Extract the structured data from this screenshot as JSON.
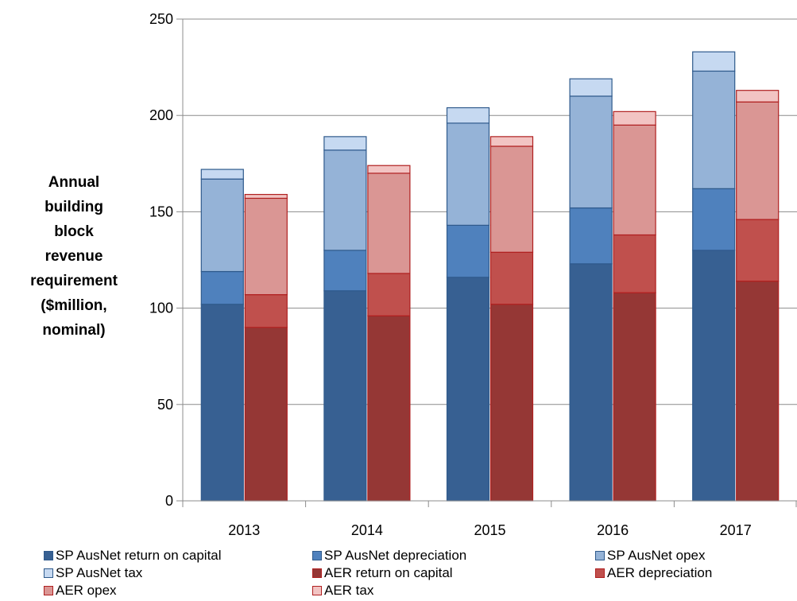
{
  "chart_data": {
    "type": "bar",
    "stacked": true,
    "grouped": true,
    "title": "",
    "ylabel_lines": [
      "Annual",
      "building",
      "block",
      "revenue",
      "requirement",
      "($million,",
      "nominal)"
    ],
    "xlabel": "",
    "categories": [
      "2013",
      "2014",
      "2015",
      "2016",
      "2017"
    ],
    "ylim": [
      0,
      250
    ],
    "yticks": [
      "0",
      "50",
      "100",
      "150",
      "200",
      "250"
    ],
    "grid": "horizontal",
    "legend_position": "bottom",
    "groups": [
      {
        "stack": "SP AusNet",
        "series": [
          {
            "name": "SP AusNet return on capital",
            "values": [
              102,
              109,
              116,
              123,
              130
            ],
            "color": "#376092"
          },
          {
            "name": "SP AusNet depreciation",
            "values": [
              17,
              21,
              27,
              29,
              32
            ],
            "color": "#4f81bd"
          },
          {
            "name": "SP AusNet opex",
            "values": [
              48,
              52,
              53,
              58,
              61
            ],
            "color": "#95b3d7"
          },
          {
            "name": "SP AusNet tax",
            "values": [
              5,
              7,
              8,
              9,
              10
            ],
            "color": "#c6d9f1"
          }
        ]
      },
      {
        "stack": "AER",
        "series": [
          {
            "name": "AER return on capital",
            "values": [
              90,
              96,
              102,
              108,
              114
            ],
            "color": "#953735"
          },
          {
            "name": "AER depreciation",
            "values": [
              17,
              22,
              27,
              30,
              32
            ],
            "color": "#c0504d"
          },
          {
            "name": "AER opex",
            "values": [
              50,
              52,
              55,
              57,
              61
            ],
            "color": "#da9694"
          },
          {
            "name": "AER tax",
            "values": [
              2,
              4,
              5,
              7,
              6
            ],
            "color": "#f2c4c3"
          }
        ]
      }
    ],
    "legend": [
      "SP AusNet return on capital",
      "SP AusNet depreciation",
      "SP AusNet opex",
      "SP AusNet tax",
      "AER return on capital",
      "AER depreciation",
      "AER opex",
      "AER tax"
    ]
  }
}
